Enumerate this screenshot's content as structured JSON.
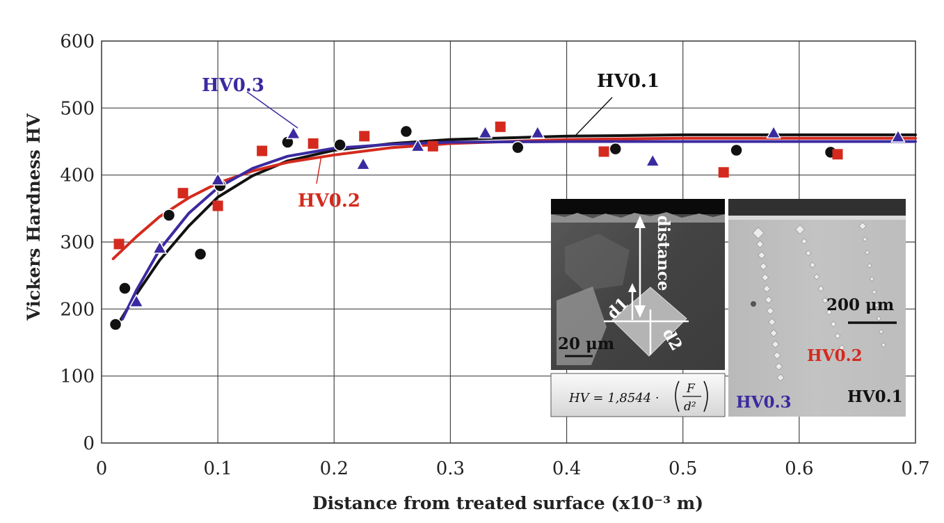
{
  "chart_data": {
    "type": "scatter",
    "title": "",
    "xlabel": "Distance from treated surface (x10⁻³ m)",
    "ylabel": "Vickers Hardness HV",
    "xlim": [
      0,
      0.7
    ],
    "ylim": [
      0,
      600
    ],
    "grid": true,
    "x_ticks": [
      "0",
      "0.1",
      "0.2",
      "0.3",
      "0.4",
      "0.5",
      "0.6",
      "0.7"
    ],
    "y_ticks": [
      "0",
      "100",
      "200",
      "300",
      "400",
      "500",
      "600"
    ],
    "series": [
      {
        "name": "HV0.1",
        "color": "#111111",
        "marker": "circle",
        "points": [
          [
            0.012,
            177
          ],
          [
            0.02,
            231
          ],
          [
            0.058,
            340
          ],
          [
            0.085,
            282
          ],
          [
            0.102,
            384
          ],
          [
            0.16,
            449
          ],
          [
            0.205,
            445
          ],
          [
            0.262,
            465
          ],
          [
            0.358,
            441
          ],
          [
            0.442,
            439
          ],
          [
            0.546,
            437
          ],
          [
            0.627,
            434
          ]
        ],
        "fit": [
          [
            0.015,
            180
          ],
          [
            0.03,
            222
          ],
          [
            0.05,
            273
          ],
          [
            0.075,
            324
          ],
          [
            0.1,
            367
          ],
          [
            0.13,
            399
          ],
          [
            0.16,
            421
          ],
          [
            0.2,
            437
          ],
          [
            0.25,
            447
          ],
          [
            0.3,
            453
          ],
          [
            0.4,
            458
          ],
          [
            0.5,
            460
          ],
          [
            0.6,
            460
          ],
          [
            0.7,
            460
          ]
        ]
      },
      {
        "name": "HV0.2",
        "color": "#d42a1e",
        "marker": "square",
        "points": [
          [
            0.015,
            297
          ],
          [
            0.07,
            373
          ],
          [
            0.1,
            354
          ],
          [
            0.138,
            436
          ],
          [
            0.182,
            447
          ],
          [
            0.226,
            458
          ],
          [
            0.285,
            443
          ],
          [
            0.343,
            472
          ],
          [
            0.432,
            435
          ],
          [
            0.535,
            404
          ],
          [
            0.633,
            431
          ]
        ],
        "fit": [
          [
            0.01,
            275
          ],
          [
            0.03,
            308
          ],
          [
            0.05,
            338
          ],
          [
            0.075,
            366
          ],
          [
            0.1,
            388
          ],
          [
            0.13,
            406
          ],
          [
            0.16,
            419
          ],
          [
            0.2,
            430
          ],
          [
            0.25,
            441
          ],
          [
            0.3,
            447
          ],
          [
            0.4,
            453
          ],
          [
            0.5,
            455
          ],
          [
            0.6,
            455
          ],
          [
            0.7,
            455
          ]
        ]
      },
      {
        "name": "HV0.3",
        "color": "#3a2aa0",
        "marker": "triangle",
        "points": [
          [
            0.03,
            210
          ],
          [
            0.05,
            290
          ],
          [
            0.1,
            392
          ],
          [
            0.165,
            461
          ],
          [
            0.225,
            415
          ],
          [
            0.272,
            442
          ],
          [
            0.33,
            462
          ],
          [
            0.375,
            462
          ],
          [
            0.474,
            420
          ],
          [
            0.578,
            462
          ],
          [
            0.685,
            456
          ]
        ],
        "fit": [
          [
            0.018,
            185
          ],
          [
            0.03,
            228
          ],
          [
            0.05,
            289
          ],
          [
            0.075,
            343
          ],
          [
            0.1,
            381
          ],
          [
            0.13,
            410
          ],
          [
            0.16,
            428
          ],
          [
            0.2,
            440
          ],
          [
            0.25,
            446
          ],
          [
            0.3,
            449
          ],
          [
            0.4,
            450
          ],
          [
            0.5,
            450
          ],
          [
            0.6,
            450
          ],
          [
            0.7,
            450
          ]
        ]
      }
    ],
    "annotations": [
      {
        "text": "HV0.3",
        "color": "#3a2aa0"
      },
      {
        "text": "HV0.1",
        "color": "#111111"
      },
      {
        "text": "HV0.2",
        "color": "#d42a1e"
      }
    ]
  },
  "inset": {
    "left": {
      "measure_label": "distance",
      "d1_label": "d1",
      "d2_label": "d2",
      "scale_label": "20 μm"
    },
    "right": {
      "scale_label": "200 μm",
      "label_hv02": "HV0.2",
      "label_hv03": "HV0.3",
      "label_hv01": "HV0.1"
    },
    "formula": {
      "lhs": "HV = 1,8544 ·",
      "numerator": "F",
      "denominator": "d²"
    }
  }
}
